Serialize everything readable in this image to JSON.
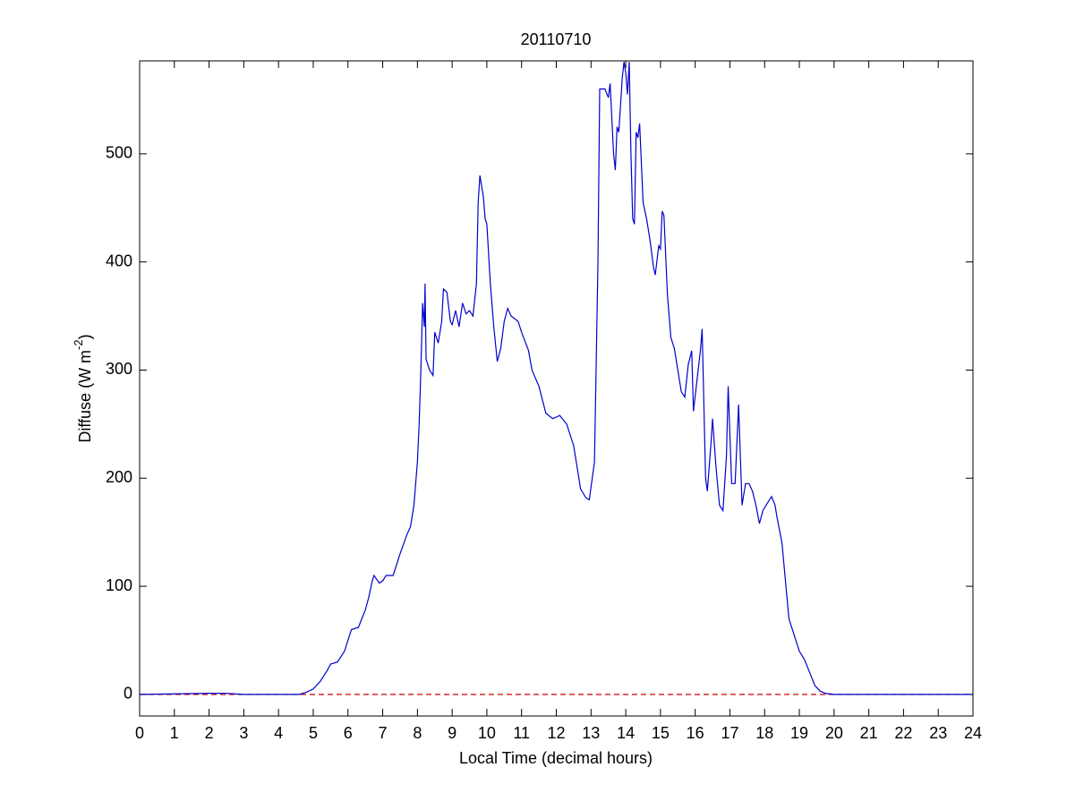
{
  "chart_data": {
    "type": "line",
    "title": "20110710",
    "xlabel": "Local Time (decimal hours)",
    "ylabel": [
      "Diffuse (W m",
      "-2",
      ")"
    ],
    "color": "#0000cc",
    "x": [
      0,
      2,
      2.5,
      3,
      4.6,
      4.8,
      5.0,
      5.2,
      5.4,
      5.5,
      5.7,
      5.9,
      6.0,
      6.1,
      6.3,
      6.5,
      6.6,
      6.7,
      6.75,
      6.9,
      7.0,
      7.1,
      7.3,
      7.5,
      7.7,
      7.8,
      7.9,
      8.0,
      8.05,
      8.1,
      8.15,
      8.2,
      8.22,
      8.25,
      8.35,
      8.45,
      8.5,
      8.6,
      8.7,
      8.75,
      8.85,
      8.95,
      9.0,
      9.1,
      9.2,
      9.3,
      9.4,
      9.5,
      9.6,
      9.7,
      9.75,
      9.8,
      9.9,
      9.95,
      10.0,
      10.1,
      10.2,
      10.3,
      10.4,
      10.5,
      10.6,
      10.7,
      10.9,
      11.0,
      11.2,
      11.3,
      11.5,
      11.7,
      11.9,
      12.1,
      12.3,
      12.5,
      12.7,
      12.85,
      12.95,
      13.1,
      13.2,
      13.25,
      13.4,
      13.5,
      13.55,
      13.65,
      13.7,
      13.75,
      13.8,
      13.9,
      13.95,
      14.0,
      14.05,
      14.1,
      14.15,
      14.2,
      14.25,
      14.3,
      14.35,
      14.4,
      14.5,
      14.6,
      14.7,
      14.8,
      14.85,
      14.95,
      15.0,
      15.05,
      15.1,
      15.2,
      15.3,
      15.4,
      15.5,
      15.6,
      15.7,
      15.8,
      15.9,
      15.95,
      16.05,
      16.15,
      16.2,
      16.3,
      16.35,
      16.45,
      16.5,
      16.6,
      16.7,
      16.8,
      16.9,
      16.95,
      17.05,
      17.15,
      17.25,
      17.35,
      17.45,
      17.55,
      17.65,
      17.75,
      17.85,
      17.95,
      18.1,
      18.2,
      18.3,
      18.35,
      18.5,
      18.6,
      18.7,
      18.85,
      19.0,
      19.15,
      19.3,
      19.45,
      19.6,
      19.75,
      20,
      24
    ],
    "values": [
      0,
      1,
      1,
      0,
      0,
      2,
      5,
      12,
      22,
      28,
      30,
      40,
      50,
      60,
      62,
      78,
      90,
      105,
      110,
      103,
      105,
      110,
      110,
      130,
      148,
      155,
      175,
      215,
      250,
      300,
      362,
      340,
      380,
      310,
      300,
      295,
      335,
      325,
      345,
      375,
      372,
      345,
      342,
      355,
      340,
      362,
      352,
      355,
      350,
      380,
      455,
      480,
      460,
      440,
      435,
      380,
      340,
      308,
      320,
      345,
      357,
      350,
      345,
      335,
      318,
      300,
      285,
      260,
      255,
      258,
      250,
      230,
      190,
      182,
      180,
      215,
      400,
      560,
      560,
      552,
      565,
      500,
      485,
      525,
      520,
      570,
      585,
      575,
      555,
      585,
      500,
      440,
      435,
      520,
      515,
      528,
      455,
      440,
      420,
      395,
      388,
      415,
      412,
      447,
      443,
      370,
      330,
      320,
      300,
      280,
      275,
      305,
      318,
      262,
      290,
      318,
      338,
      200,
      188,
      230,
      255,
      210,
      175,
      170,
      220,
      285,
      195,
      195,
      268,
      175,
      195,
      195,
      188,
      175,
      158,
      170,
      178,
      183,
      175,
      165,
      140,
      105,
      70,
      55,
      40,
      32,
      20,
      8,
      3,
      1,
      0,
      0
    ],
    "xlim": [
      0,
      24
    ],
    "ylim": [
      -20,
      586
    ],
    "xticks": [
      0,
      1,
      2,
      3,
      4,
      5,
      6,
      7,
      8,
      9,
      10,
      11,
      12,
      13,
      14,
      15,
      16,
      17,
      18,
      19,
      20,
      21,
      22,
      23,
      24
    ],
    "yticks": [
      0,
      100,
      200,
      300,
      400,
      500
    ],
    "reference_line": {
      "value": 0,
      "color": "#cc0000",
      "style": "dashed"
    },
    "grid": false
  }
}
